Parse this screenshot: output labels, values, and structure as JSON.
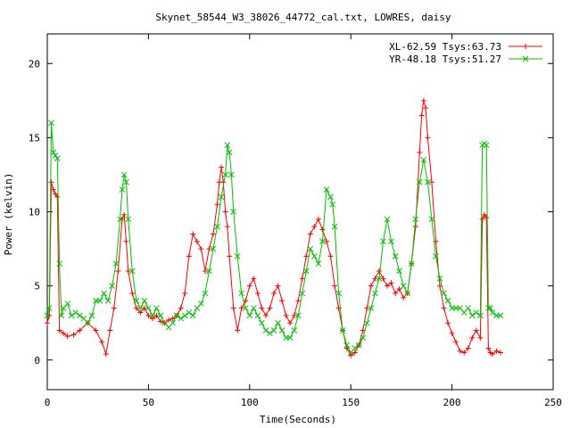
{
  "chart_data": {
    "type": "line",
    "title": "Skynet_58544_W3_38026_44772_cal.txt, LOWRES, daisy",
    "xlabel": "Time(Seconds)",
    "ylabel": "Power (kelvin)",
    "xlim": [
      0,
      250
    ],
    "ylim": [
      -2,
      22
    ],
    "xticks": [
      0,
      50,
      100,
      150,
      200,
      250
    ],
    "yticks": [
      0,
      5,
      10,
      15,
      20
    ],
    "grid": false,
    "legend_position": "top-right",
    "series": [
      {
        "name": "XL-62.59 Tsys:63.73",
        "color": "#ff0000",
        "marker": "+",
        "x": [
          0,
          1,
          2,
          3,
          4,
          5,
          6,
          8,
          10,
          13,
          16,
          20,
          24,
          27,
          29,
          31,
          33,
          35,
          37,
          38,
          39,
          40,
          42,
          44,
          46,
          48,
          50,
          52,
          54,
          56,
          58,
          60,
          62,
          64,
          66,
          68,
          70,
          72,
          74,
          76,
          78,
          80,
          82,
          84,
          85,
          86,
          87,
          88,
          89,
          90,
          92,
          94,
          96,
          98,
          100,
          102,
          104,
          106,
          108,
          110,
          112,
          114,
          116,
          118,
          120,
          122,
          124,
          126,
          128,
          130,
          132,
          134,
          136,
          138,
          140,
          142,
          144,
          146,
          148,
          150,
          152,
          154,
          156,
          158,
          160,
          162,
          164,
          166,
          168,
          170,
          172,
          174,
          176,
          178,
          180,
          182,
          184,
          185,
          186,
          187,
          188,
          190,
          192,
          194,
          196,
          198,
          200,
          202,
          204,
          206,
          208,
          210,
          212,
          214,
          215,
          216,
          217,
          218,
          219,
          220,
          222,
          224
        ],
        "y": [
          2.5,
          3.0,
          12.0,
          11.5,
          11.2,
          11.0,
          2.0,
          1.8,
          1.6,
          1.7,
          2.0,
          2.5,
          2.0,
          1.2,
          0.4,
          2.0,
          3.5,
          6.0,
          9.5,
          9.8,
          8.0,
          6.0,
          4.5,
          3.5,
          3.2,
          3.5,
          3.0,
          2.8,
          3.0,
          2.6,
          2.5,
          2.7,
          2.8,
          3.0,
          3.5,
          4.5,
          7.0,
          8.5,
          8.0,
          7.5,
          6.0,
          7.5,
          8.5,
          10.5,
          12.0,
          13.0,
          12.0,
          10.0,
          9.0,
          7.0,
          3.5,
          2.0,
          3.5,
          4.0,
          5.0,
          5.5,
          4.5,
          3.5,
          3.0,
          3.5,
          4.5,
          5.0,
          4.0,
          3.0,
          2.5,
          3.0,
          4.0,
          5.5,
          7.0,
          8.5,
          9.0,
          9.5,
          8.8,
          8.0,
          7.0,
          5.0,
          3.5,
          2.0,
          0.8,
          0.3,
          0.5,
          1.0,
          2.0,
          3.5,
          5.0,
          5.5,
          6.0,
          5.5,
          5.0,
          5.2,
          4.5,
          4.8,
          4.2,
          4.5,
          6.5,
          9.0,
          14.0,
          16.5,
          17.5,
          17.0,
          15.0,
          12.0,
          8.0,
          5.0,
          3.5,
          2.5,
          1.8,
          1.2,
          0.6,
          0.5,
          0.8,
          1.5,
          2.0,
          1.5,
          9.5,
          9.8,
          9.6,
          0.8,
          0.5,
          0.4,
          0.6,
          0.5
        ]
      },
      {
        "name": "YR-48.18 Tsys:51.27",
        "color": "#00c000",
        "marker": "x",
        "x": [
          0,
          1,
          2,
          3,
          4,
          5,
          6,
          7,
          8,
          10,
          12,
          14,
          16,
          18,
          20,
          22,
          24,
          26,
          28,
          30,
          32,
          34,
          36,
          37,
          38,
          39,
          40,
          42,
          44,
          46,
          48,
          50,
          52,
          54,
          56,
          58,
          60,
          62,
          64,
          66,
          68,
          70,
          72,
          74,
          76,
          78,
          80,
          82,
          84,
          86,
          88,
          89,
          90,
          91,
          92,
          94,
          96,
          98,
          100,
          102,
          104,
          106,
          108,
          110,
          112,
          114,
          116,
          118,
          120,
          122,
          124,
          126,
          128,
          130,
          132,
          134,
          136,
          138,
          140,
          141,
          142,
          144,
          146,
          148,
          150,
          152,
          154,
          156,
          158,
          160,
          162,
          164,
          166,
          168,
          170,
          172,
          174,
          176,
          178,
          180,
          182,
          184,
          186,
          188,
          190,
          192,
          194,
          196,
          198,
          200,
          202,
          204,
          206,
          208,
          210,
          212,
          214,
          215,
          216,
          217,
          218,
          219,
          220,
          222,
          224
        ],
        "y": [
          3.0,
          3.5,
          16.0,
          14.0,
          13.8,
          13.6,
          6.5,
          3.0,
          3.5,
          3.8,
          3.0,
          3.2,
          3.0,
          2.8,
          2.5,
          3.0,
          4.0,
          4.0,
          4.5,
          4.0,
          5.0,
          6.5,
          9.5,
          11.5,
          12.5,
          12.0,
          9.5,
          6.0,
          4.0,
          3.5,
          4.0,
          3.5,
          3.0,
          3.5,
          3.0,
          2.5,
          2.2,
          2.5,
          3.0,
          2.8,
          3.0,
          3.2,
          3.0,
          3.5,
          3.8,
          4.5,
          6.0,
          7.5,
          9.0,
          11.0,
          12.5,
          14.5,
          14.0,
          12.5,
          10.0,
          7.0,
          4.5,
          3.5,
          3.0,
          3.5,
          3.0,
          2.5,
          2.0,
          1.8,
          2.0,
          2.5,
          2.0,
          1.5,
          1.5,
          2.0,
          3.0,
          4.5,
          6.0,
          7.5,
          7.0,
          6.5,
          8.0,
          11.5,
          11.0,
          10.5,
          9.0,
          4.5,
          2.0,
          1.0,
          0.5,
          0.8,
          1.0,
          1.5,
          2.5,
          3.5,
          4.5,
          5.5,
          8.0,
          9.5,
          8.0,
          7.0,
          6.0,
          5.0,
          4.5,
          6.5,
          9.5,
          12.0,
          13.5,
          12.0,
          9.5,
          7.0,
          5.5,
          4.5,
          4.0,
          3.5,
          3.5,
          3.5,
          3.2,
          3.5,
          3.0,
          3.2,
          3.0,
          14.5,
          14.6,
          14.5,
          3.5,
          3.5,
          3.2,
          3.0,
          3.0
        ]
      }
    ]
  }
}
